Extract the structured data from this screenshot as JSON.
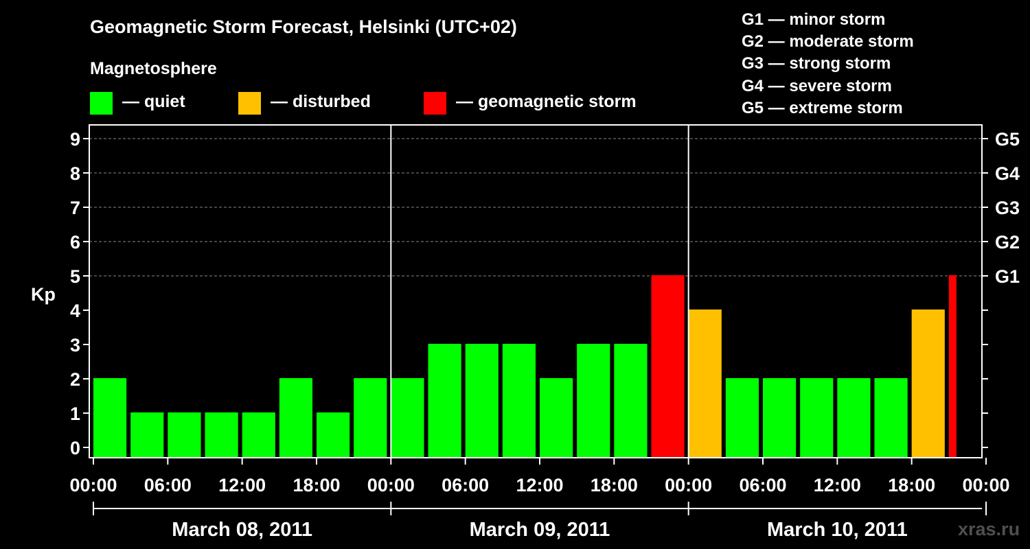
{
  "title": "Geomagnetic Storm Forecast, Helsinki (UTC+02)",
  "legend": {
    "title": "Magnetosphere",
    "items": [
      {
        "label": "— quiet",
        "color": "#00ff00"
      },
      {
        "label": "— disturbed",
        "color": "#ffc000"
      },
      {
        "label": "— geomagnetic storm",
        "color": "#ff0000"
      }
    ]
  },
  "storm_scale": [
    "G1 — minor storm",
    "G2 — moderate storm",
    "G3 — strong storm",
    "G4 — severe storm",
    "G5 — extreme storm"
  ],
  "watermark": "xras.ru",
  "chart_data": {
    "type": "bar",
    "ylabel": "Kp",
    "ylim": [
      0,
      9
    ],
    "yticks": [
      "0",
      "1",
      "2",
      "3",
      "4",
      "5",
      "6",
      "7",
      "8",
      "9"
    ],
    "right_ticks": [
      {
        "label": "G1",
        "kp": 5
      },
      {
        "label": "G2",
        "kp": 6
      },
      {
        "label": "G3",
        "kp": 7
      },
      {
        "label": "G4",
        "kp": 8
      },
      {
        "label": "G5",
        "kp": 9
      }
    ],
    "grid": "dashed horizontal at Kp 5-9",
    "time_ticks": [
      "00:00",
      "06:00",
      "12:00",
      "18:00",
      "00:00",
      "06:00",
      "12:00",
      "18:00",
      "00:00",
      "06:00",
      "12:00",
      "18:00",
      "00:00"
    ],
    "days": [
      "March 08, 2011",
      "March 09, 2011",
      "March 10, 2011"
    ],
    "interval_hours": 3,
    "colors": {
      "quiet": "#00ff00",
      "disturbed": "#ffc000",
      "storm": "#ff0000"
    },
    "bars": [
      {
        "start": "March 08, 2011 00:00",
        "kp": 2,
        "level": "quiet"
      },
      {
        "start": "March 08, 2011 03:00",
        "kp": 1,
        "level": "quiet"
      },
      {
        "start": "March 08, 2011 06:00",
        "kp": 1,
        "level": "quiet"
      },
      {
        "start": "March 08, 2011 09:00",
        "kp": 1,
        "level": "quiet"
      },
      {
        "start": "March 08, 2011 12:00",
        "kp": 1,
        "level": "quiet"
      },
      {
        "start": "March 08, 2011 15:00",
        "kp": 2,
        "level": "quiet"
      },
      {
        "start": "March 08, 2011 18:00",
        "kp": 1,
        "level": "quiet"
      },
      {
        "start": "March 08, 2011 21:00",
        "kp": 2,
        "level": "quiet"
      },
      {
        "start": "March 09, 2011 00:00",
        "kp": 2,
        "level": "quiet"
      },
      {
        "start": "March 09, 2011 03:00",
        "kp": 3,
        "level": "quiet"
      },
      {
        "start": "March 09, 2011 06:00",
        "kp": 3,
        "level": "quiet"
      },
      {
        "start": "March 09, 2011 09:00",
        "kp": 3,
        "level": "quiet"
      },
      {
        "start": "March 09, 2011 12:00",
        "kp": 2,
        "level": "quiet"
      },
      {
        "start": "March 09, 2011 15:00",
        "kp": 3,
        "level": "quiet"
      },
      {
        "start": "March 09, 2011 18:00",
        "kp": 3,
        "level": "quiet"
      },
      {
        "start": "March 09, 2011 21:00",
        "kp": 5,
        "level": "storm"
      },
      {
        "start": "March 10, 2011 00:00",
        "kp": 4,
        "level": "disturbed"
      },
      {
        "start": "March 10, 2011 03:00",
        "kp": 2,
        "level": "quiet"
      },
      {
        "start": "March 10, 2011 06:00",
        "kp": 2,
        "level": "quiet"
      },
      {
        "start": "March 10, 2011 09:00",
        "kp": 2,
        "level": "quiet"
      },
      {
        "start": "March 10, 2011 12:00",
        "kp": 2,
        "level": "quiet"
      },
      {
        "start": "March 10, 2011 15:00",
        "kp": 2,
        "level": "quiet"
      },
      {
        "start": "March 10, 2011 18:00",
        "kp": 4,
        "level": "disturbed"
      },
      {
        "start": "March 10, 2011 21:00",
        "kp": 5,
        "level": "storm"
      }
    ]
  }
}
